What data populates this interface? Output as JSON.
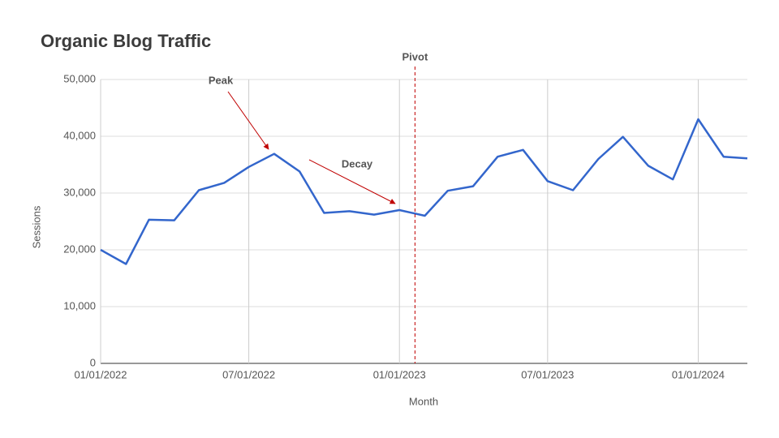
{
  "chart_data": {
    "type": "line",
    "title": "Organic Blog Traffic",
    "x_label": "Month",
    "y_label": "Sessions",
    "x": [
      "2022-01-01",
      "2022-02-01",
      "2022-03-01",
      "2022-04-01",
      "2022-05-01",
      "2022-06-01",
      "2022-07-01",
      "2022-08-01",
      "2022-09-01",
      "2022-10-01",
      "2022-11-01",
      "2022-12-01",
      "2023-01-01",
      "2023-02-01",
      "2023-03-01",
      "2023-04-01",
      "2023-05-01",
      "2023-06-01",
      "2023-07-01",
      "2023-08-01",
      "2023-09-01",
      "2023-10-01",
      "2023-11-01",
      "2023-12-01",
      "2024-01-01",
      "2024-02-01",
      "2024-03-01"
    ],
    "series": [
      {
        "name": "Sessions",
        "color": "#3366cc",
        "values": [
          20000,
          17500,
          25300,
          25200,
          30500,
          31800,
          34600,
          36900,
          33800,
          26500,
          26800,
          26200,
          27000,
          26000,
          30400,
          31200,
          36400,
          37600,
          32100,
          30500,
          36000,
          39900,
          34800,
          32400,
          43000,
          36400,
          36100
        ]
      }
    ],
    "xlim": [
      "2022-01-01",
      "2024-03-01"
    ],
    "xticks": [
      {
        "value": "2022-01-01",
        "label": "01/01/2022"
      },
      {
        "value": "2022-07-01",
        "label": "07/01/2022"
      },
      {
        "value": "2023-01-01",
        "label": "01/01/2023"
      },
      {
        "value": "2023-07-01",
        "label": "07/01/2023"
      },
      {
        "value": "2024-01-01",
        "label": "01/01/2024"
      }
    ],
    "ylim": [
      0,
      50000
    ],
    "yticks": [
      0,
      {
        "value": 10000,
        "label": "10,000"
      },
      {
        "value": 20000,
        "label": "20,000"
      },
      {
        "value": 30000,
        "label": "30,000"
      },
      {
        "value": 40000,
        "label": "40,000"
      },
      {
        "value": 50000,
        "label": "50,000"
      }
    ],
    "grid": true,
    "annotations": [
      {
        "text": "Pivot",
        "x": "2023-01-20",
        "color": "#c00000"
      },
      {
        "text": "Peak",
        "color": "#c00000"
      },
      {
        "text": "Decay",
        "color": "#c00000"
      }
    ]
  }
}
